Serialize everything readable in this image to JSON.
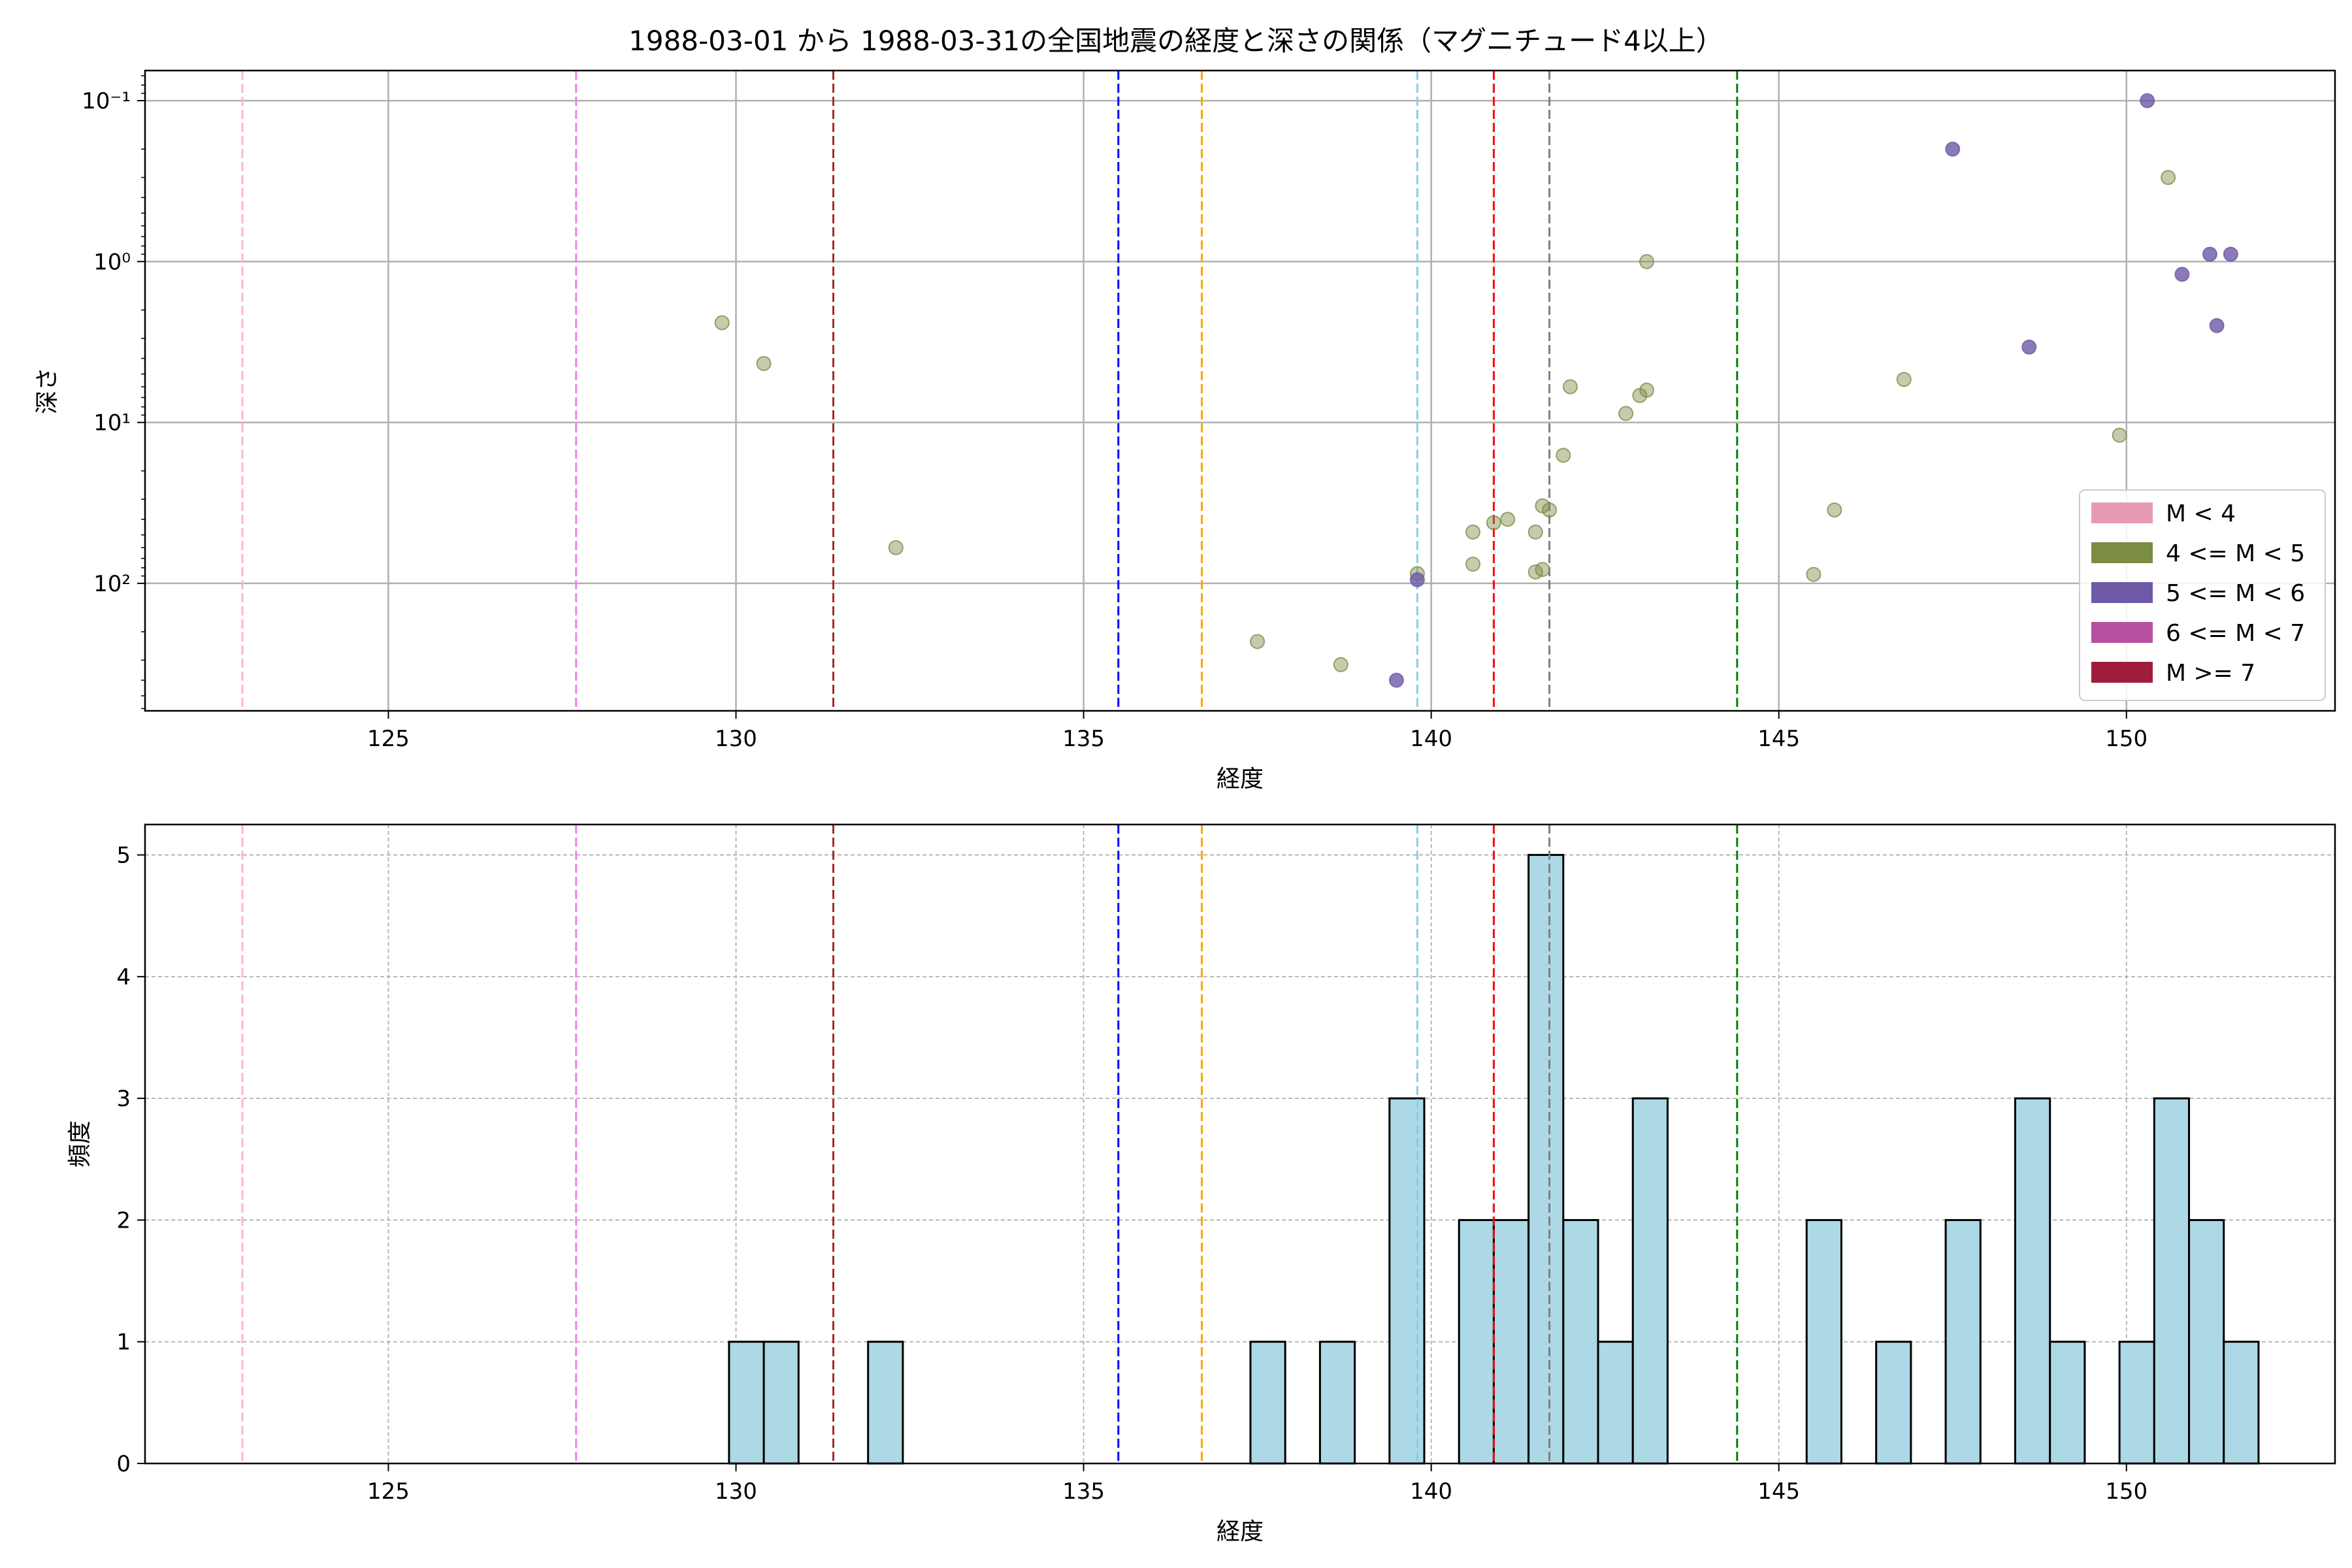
{
  "title": "1988-03-01 から 1988-03-31の全国地震の経度と深さの関係（マグニチュード4以上）",
  "colors": {
    "grid": "#b0b0b0",
    "hist_fill": "#add8e6",
    "hist_edge": "#000000",
    "m4_5_point": "#7f8f4a",
    "m5_6_point": "#6e59a6"
  },
  "chart_data": [
    {
      "type": "scatter",
      "xlabel": "経度",
      "ylabel": "深さ",
      "xlim": [
        121.5,
        153.0
      ],
      "ylim": [
        620,
        0.065
      ],
      "yscale": "log",
      "y_inverted": true,
      "grid": true,
      "x_ticks": [
        125,
        130,
        135,
        140,
        145,
        150
      ],
      "x_tick_labels": [
        "125",
        "130",
        "135",
        "140",
        "145",
        "150"
      ],
      "y_ticks": [
        0.1,
        1,
        10,
        100
      ],
      "y_tick_labels": [
        "10⁻¹",
        "10⁰",
        "10¹",
        "10²"
      ],
      "legend": {
        "position": "lower-right",
        "entries": [
          {
            "label": "M < 4",
            "color": "#e79ab4"
          },
          {
            "label": "4 <= M < 5",
            "color": "#7b8c45"
          },
          {
            "label": "5 <= M < 6",
            "color": "#6e59a6"
          },
          {
            "label": "6 <= M < 7",
            "color": "#b84f9e"
          },
          {
            "label": "M >= 7",
            "color": "#a01c3c"
          }
        ]
      },
      "vlines": [
        {
          "x": 122.9,
          "color": "#ffb6c1"
        },
        {
          "x": 127.7,
          "color": "#ee82ee"
        },
        {
          "x": 131.4,
          "color": "#a52a2a"
        },
        {
          "x": 135.5,
          "color": "#0000ff"
        },
        {
          "x": 136.7,
          "color": "#ffa500"
        },
        {
          "x": 139.8,
          "color": "#87ceeb"
        },
        {
          "x": 140.9,
          "color": "#ff0000"
        },
        {
          "x": 141.7,
          "color": "#808080"
        },
        {
          "x": 144.4,
          "color": "#008000"
        }
      ],
      "series": [
        {
          "name": "4 <= M < 5",
          "color": "#7f8f4a",
          "points": [
            [
              129.8,
              2.4
            ],
            [
              130.4,
              4.3
            ],
            [
              132.3,
              60
            ],
            [
              137.5,
              230
            ],
            [
              138.7,
              320
            ],
            [
              139.8,
              87
            ],
            [
              140.6,
              48
            ],
            [
              140.6,
              76
            ],
            [
              140.9,
              42
            ],
            [
              141.1,
              40
            ],
            [
              141.5,
              85
            ],
            [
              141.6,
              82
            ],
            [
              141.5,
              48
            ],
            [
              141.6,
              33
            ],
            [
              141.7,
              35
            ],
            [
              141.9,
              16
            ],
            [
              142.0,
              6.0
            ],
            [
              142.8,
              8.8
            ],
            [
              143.0,
              6.8
            ],
            [
              143.1,
              6.3
            ],
            [
              143.1,
              1.0
            ],
            [
              145.5,
              88
            ],
            [
              145.8,
              35
            ],
            [
              146.8,
              5.4
            ],
            [
              149.9,
              12
            ],
            [
              150.6,
              0.3
            ]
          ]
        },
        {
          "name": "5 <= M < 6",
          "color": "#6e59a6",
          "points": [
            [
              147.5,
              0.2
            ],
            [
              148.6,
              3.4
            ],
            [
              150.3,
              0.1
            ],
            [
              150.8,
              1.2
            ],
            [
              151.2,
              0.9
            ],
            [
              151.3,
              2.5
            ],
            [
              151.5,
              0.9
            ],
            [
              139.5,
              400
            ],
            [
              139.8,
              95
            ]
          ]
        }
      ]
    },
    {
      "type": "histogram",
      "xlabel": "経度",
      "ylabel": "頻度",
      "xlim": [
        121.5,
        153.0
      ],
      "ylim": [
        0,
        5.25
      ],
      "grid": true,
      "x_ticks": [
        125,
        130,
        135,
        140,
        145,
        150
      ],
      "x_tick_labels": [
        "125",
        "130",
        "135",
        "140",
        "145",
        "150"
      ],
      "y_ticks": [
        0,
        1,
        2,
        3,
        4,
        5
      ],
      "y_tick_labels": [
        "0",
        "1",
        "2",
        "3",
        "4",
        "5"
      ],
      "bin_width": 0.5,
      "bins": [
        {
          "start": 129.9,
          "count": 1
        },
        {
          "start": 130.4,
          "count": 1
        },
        {
          "start": 131.9,
          "count": 1
        },
        {
          "start": 137.4,
          "count": 1
        },
        {
          "start": 138.4,
          "count": 1
        },
        {
          "start": 139.4,
          "count": 3
        },
        {
          "start": 140.4,
          "count": 2
        },
        {
          "start": 140.9,
          "count": 2
        },
        {
          "start": 141.4,
          "count": 5
        },
        {
          "start": 141.9,
          "count": 2
        },
        {
          "start": 142.4,
          "count": 1
        },
        {
          "start": 142.9,
          "count": 3
        },
        {
          "start": 145.4,
          "count": 2
        },
        {
          "start": 146.4,
          "count": 1
        },
        {
          "start": 147.4,
          "count": 2
        },
        {
          "start": 148.4,
          "count": 3
        },
        {
          "start": 148.9,
          "count": 1
        },
        {
          "start": 149.9,
          "count": 1
        },
        {
          "start": 150.4,
          "count": 3
        },
        {
          "start": 150.9,
          "count": 2
        },
        {
          "start": 151.4,
          "count": 1
        }
      ],
      "vlines": [
        {
          "x": 122.9,
          "color": "#ffb6c1"
        },
        {
          "x": 127.7,
          "color": "#ee82ee"
        },
        {
          "x": 131.4,
          "color": "#a52a2a"
        },
        {
          "x": 135.5,
          "color": "#0000ff"
        },
        {
          "x": 136.7,
          "color": "#ffa500"
        },
        {
          "x": 139.8,
          "color": "#87ceeb"
        },
        {
          "x": 140.9,
          "color": "#ff0000"
        },
        {
          "x": 141.7,
          "color": "#808080"
        },
        {
          "x": 144.4,
          "color": "#008000"
        }
      ]
    }
  ]
}
